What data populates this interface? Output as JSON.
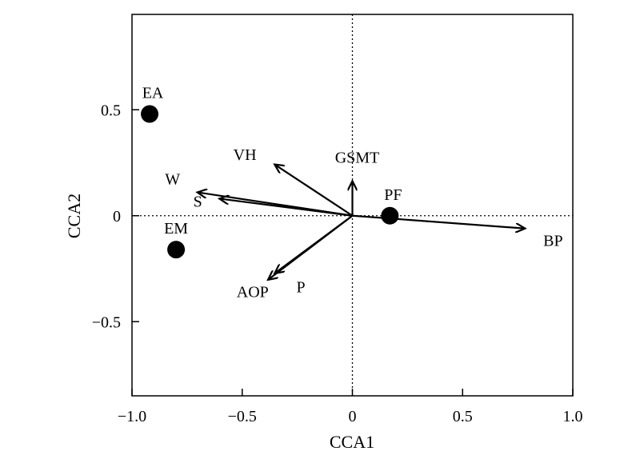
{
  "chart_data": {
    "type": "scatter",
    "title": "",
    "xlabel": "CCA1",
    "ylabel": "CCA2",
    "xlim": [
      -1.0,
      1.0
    ],
    "ylim": [
      -0.85,
      0.95
    ],
    "xticks": [
      -1.0,
      -0.5,
      0,
      0.5,
      1.0
    ],
    "xtick_labels": [
      "−1.0",
      "−0.5",
      "0",
      "0.5",
      "1.0"
    ],
    "yticks": [
      -0.5,
      0,
      0.5
    ],
    "ytick_labels": [
      "−0.5",
      "0",
      "0.5"
    ],
    "grid": false,
    "zero_lines": "dotted",
    "points": [
      {
        "label": "EA",
        "x": -0.92,
        "y": 0.48
      },
      {
        "label": "EM",
        "x": -0.8,
        "y": -0.16
      },
      {
        "label": "PF",
        "x": 0.17,
        "y": 0.0
      }
    ],
    "vectors": [
      {
        "label": "VH",
        "x": -0.35,
        "y": 0.24
      },
      {
        "label": "GSMT",
        "x": 0.0,
        "y": 0.16
      },
      {
        "label": "W",
        "x": -0.7,
        "y": 0.11
      },
      {
        "label": "S",
        "x": -0.6,
        "y": 0.08
      },
      {
        "label": "AOP",
        "x": -0.38,
        "y": -0.3
      },
      {
        "label": "P",
        "x": -0.35,
        "y": -0.27
      },
      {
        "label": "BP",
        "x": 0.78,
        "y": -0.06
      }
    ]
  }
}
